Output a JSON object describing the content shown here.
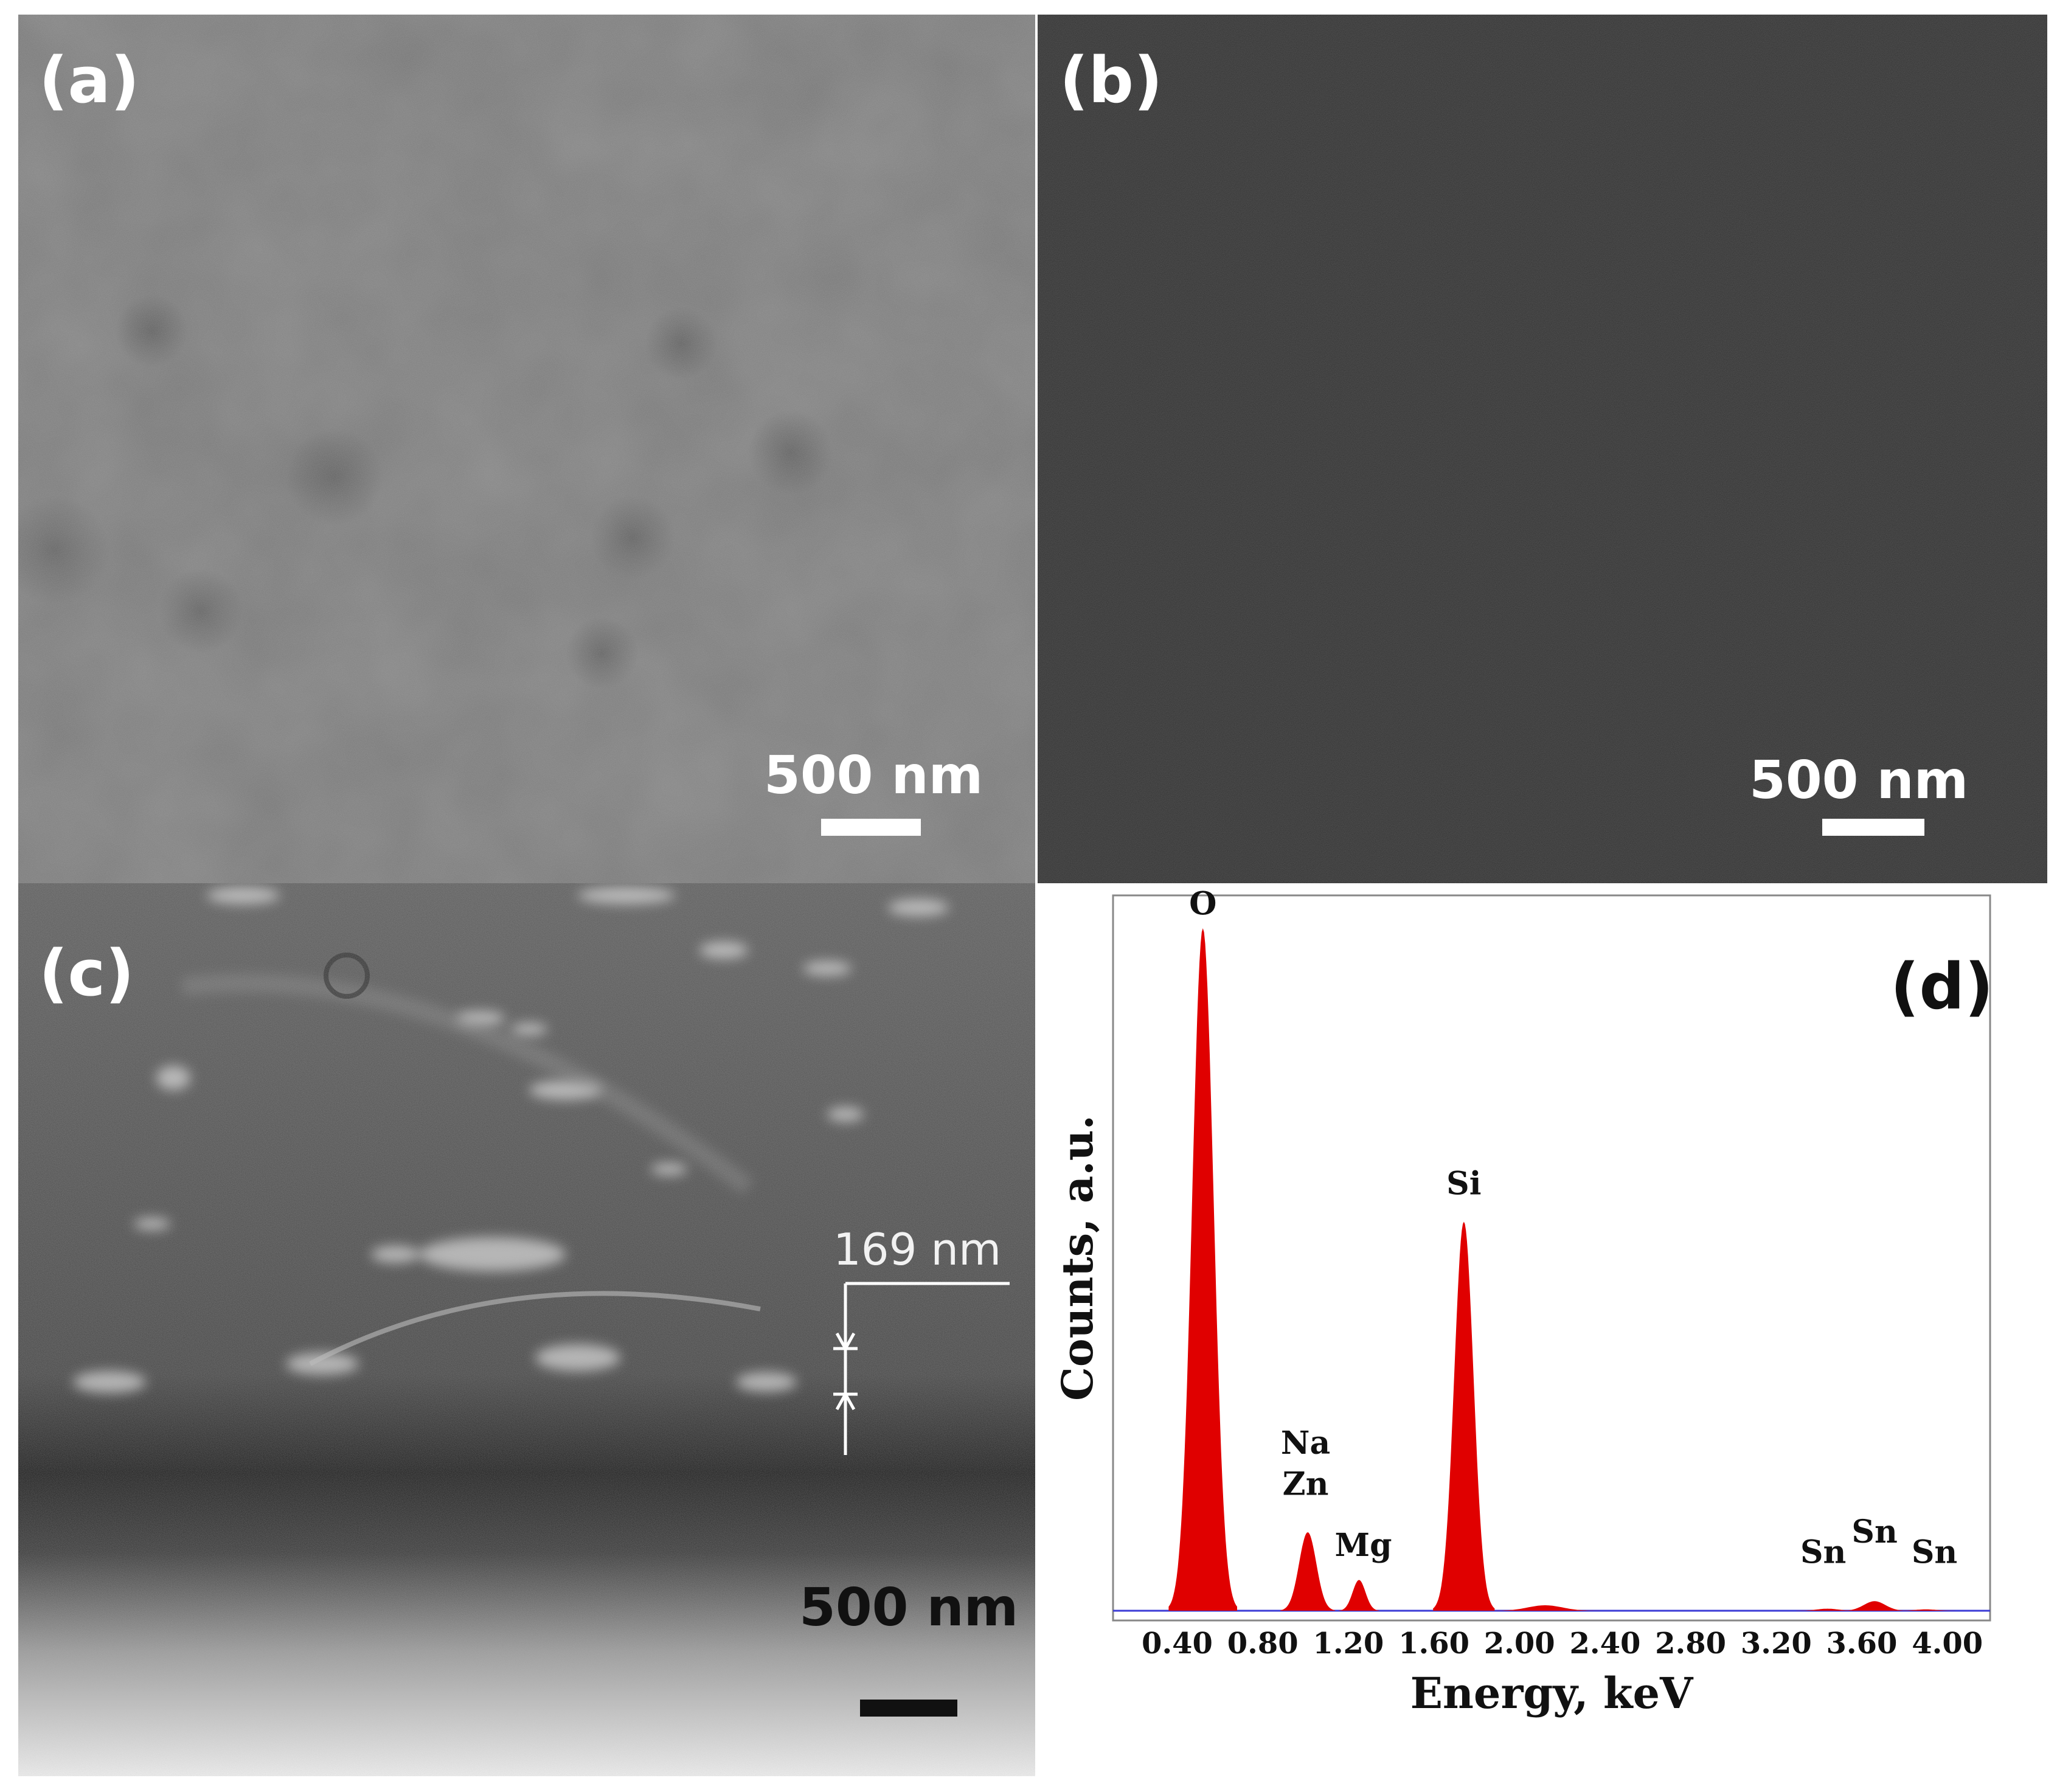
{
  "panels": {
    "a": {
      "label": "(a)",
      "scale_bar": "500 nm"
    },
    "b": {
      "label": "(b)",
      "scale_bar": "500 nm"
    },
    "c": {
      "label": "(c)",
      "scale_bar": "500 nm",
      "thickness_annotation": "169 nm"
    },
    "d": {
      "label": "(d)"
    }
  },
  "colors": {
    "spectrum_fill": "#e00000",
    "baseline": "#3b3bd6"
  },
  "chart_data": {
    "type": "area",
    "xlabel": "Energy, keV",
    "ylabel": "Counts, a.u.",
    "x_ticks": [
      "0.40",
      "0.80",
      "1.20",
      "1.60",
      "2.00",
      "2.40",
      "2.80",
      "3.20",
      "3.60",
      "4.00"
    ],
    "xlim": [
      0.1,
      4.2
    ],
    "ylim": [
      0,
      1.0
    ],
    "peaks": [
      {
        "element": "O",
        "energy": 0.52,
        "height": 1.0,
        "width": 0.05
      },
      {
        "element": "Na Zn",
        "energy": 1.01,
        "height": 0.115,
        "width": 0.04
      },
      {
        "element": "Mg",
        "energy": 1.25,
        "height": 0.045,
        "width": 0.03
      },
      {
        "element": "Si",
        "energy": 1.74,
        "height": 0.57,
        "width": 0.045
      },
      {
        "element": "",
        "energy": 2.12,
        "height": 0.008,
        "width": 0.08
      },
      {
        "element": "Sn",
        "energy": 3.44,
        "height": 0.003,
        "width": 0.05
      },
      {
        "element": "Sn",
        "energy": 3.66,
        "height": 0.014,
        "width": 0.05
      },
      {
        "element": "Sn",
        "energy": 3.9,
        "height": 0.002,
        "width": 0.05
      }
    ],
    "peak_labels": [
      {
        "text": "O",
        "energy": 0.52,
        "y": 1.02
      },
      {
        "text": "Na",
        "energy": 1.0,
        "y": 0.23
      },
      {
        "text": "Zn",
        "energy": 1.0,
        "y": 0.17
      },
      {
        "text": "Mg",
        "energy": 1.27,
        "y": 0.08
      },
      {
        "text": "Si",
        "energy": 1.74,
        "y": 0.61
      },
      {
        "text": "Sn",
        "energy": 3.42,
        "y": 0.07
      },
      {
        "text": "Sn",
        "energy": 3.66,
        "y": 0.1
      },
      {
        "text": "Sn",
        "energy": 3.94,
        "y": 0.07
      }
    ]
  }
}
